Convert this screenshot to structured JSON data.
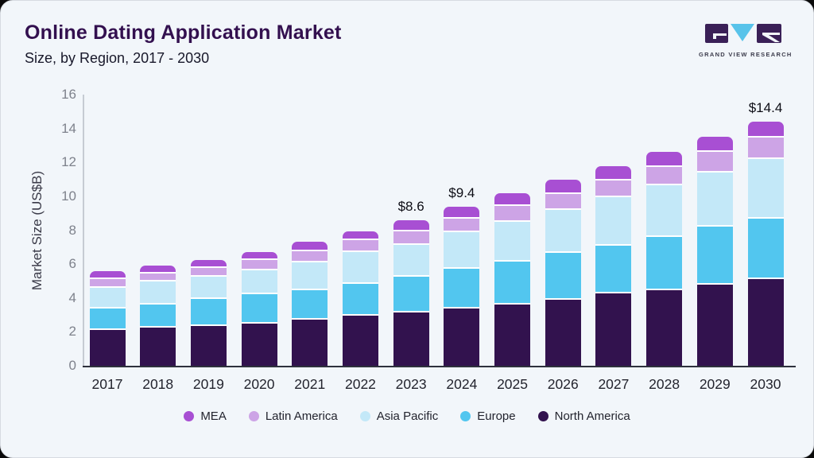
{
  "header": {
    "title": "Online Dating Application Market",
    "subtitle": "Size, by Region, 2017 - 2030"
  },
  "logo": {
    "text": "GRAND VIEW RESEARCH",
    "square_color": "#3a2057",
    "triangle_color": "#58c3ea"
  },
  "chart_data": {
    "type": "bar",
    "stacked": true,
    "title": "Online Dating Application Market Size, by Region, 2017 - 2030",
    "ylabel": "Market Size (US$B)",
    "ylim": [
      0,
      16
    ],
    "y_ticks": [
      0,
      2,
      4,
      6,
      8,
      10,
      12,
      14,
      16
    ],
    "grid": false,
    "legend_position": "bottom",
    "categories": [
      "2017",
      "2018",
      "2019",
      "2020",
      "2021",
      "2022",
      "2023",
      "2024",
      "2025",
      "2026",
      "2027",
      "2028",
      "2029",
      "2030"
    ],
    "series": [
      {
        "name": "North America",
        "color": "#32124e",
        "values": [
          2.1,
          2.25,
          2.35,
          2.5,
          2.7,
          2.95,
          3.15,
          3.4,
          3.6,
          3.9,
          4.25,
          4.45,
          4.8,
          5.1
        ]
      },
      {
        "name": "Europe",
        "color": "#52c6ef",
        "values": [
          1.3,
          1.35,
          1.6,
          1.7,
          1.75,
          1.9,
          2.1,
          2.3,
          2.55,
          2.75,
          2.85,
          3.15,
          3.4,
          3.6
        ]
      },
      {
        "name": "Asia Pacific",
        "color": "#c3e8f8",
        "values": [
          1.2,
          1.35,
          1.3,
          1.45,
          1.65,
          1.85,
          1.9,
          2.2,
          2.35,
          2.55,
          2.85,
          3.05,
          3.2,
          3.5
        ]
      },
      {
        "name": "Latin America",
        "color": "#cda4e6",
        "values": [
          0.5,
          0.5,
          0.5,
          0.6,
          0.65,
          0.7,
          0.8,
          0.8,
          0.95,
          0.95,
          1.0,
          1.1,
          1.2,
          1.25
        ]
      },
      {
        "name": "MEA",
        "color": "#a84fd3",
        "values": [
          0.5,
          0.45,
          0.5,
          0.45,
          0.55,
          0.55,
          0.65,
          0.7,
          0.75,
          0.85,
          0.85,
          0.85,
          0.9,
          0.95
        ]
      }
    ],
    "totals": [
      5.6,
      5.9,
      6.25,
      6.7,
      7.3,
      7.95,
      8.6,
      9.4,
      10.2,
      11.0,
      11.8,
      12.6,
      13.5,
      14.4
    ],
    "annotations": [
      {
        "category": "2023",
        "label": "$8.6"
      },
      {
        "category": "2024",
        "label": "$9.4"
      },
      {
        "category": "2030",
        "label": "$14.4"
      }
    ],
    "legend_order": [
      "MEA",
      "Latin America",
      "Asia Pacific",
      "Europe",
      "North America"
    ]
  }
}
